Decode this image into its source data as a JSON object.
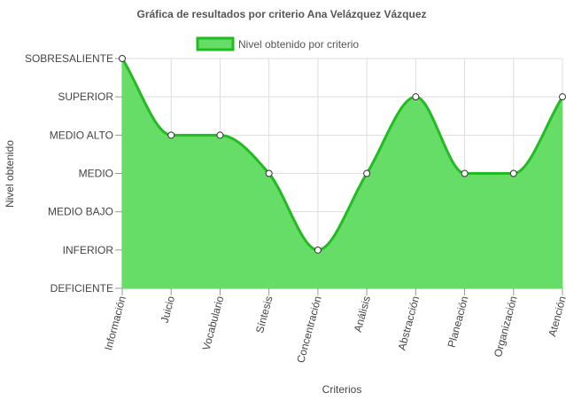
{
  "chart_data": {
    "type": "area",
    "title": "Gráfica de resultados por criterio Ana Velázquez Vázquez",
    "xlabel": "Criterios",
    "ylabel": "Nivel obtenido",
    "categories": [
      "Información",
      "Juicio",
      "Vocabulario",
      "Síntesis",
      "Concentración",
      "Análisis",
      "Abstracción",
      "Planeación",
      "Organización",
      "Atención"
    ],
    "levels": [
      "DEFICIENTE",
      "INFERIOR",
      "MEDIO BAJO",
      "MEDIO",
      "MEDIO ALTO",
      "SUPERIOR",
      "SOBRESALIENTE"
    ],
    "series": [
      {
        "name": "Nivel obtenido por criterio",
        "values": [
          6,
          4,
          4,
          3,
          1,
          3,
          5,
          3,
          3,
          5
        ]
      }
    ],
    "ylim": [
      0,
      6
    ],
    "grid": true,
    "legend": "top-center",
    "colors": {
      "fill": "#66dd66",
      "line": "#22bb22",
      "point_fill": "#ffffff",
      "point_stroke": "#333333",
      "grid": "#dddddd",
      "axis": "#999999"
    }
  }
}
